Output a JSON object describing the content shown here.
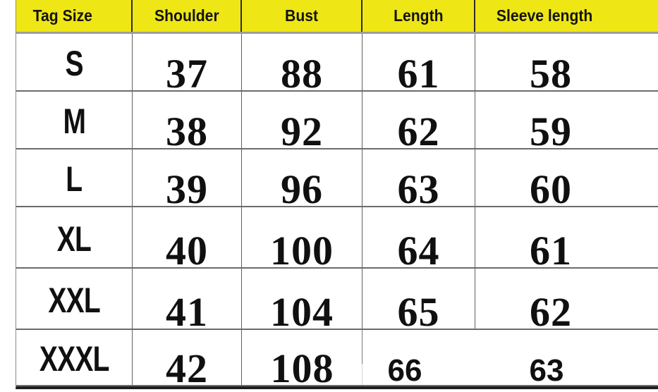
{
  "header": {
    "columns": [
      "Tag Size",
      "Shoulder",
      "Bust",
      "Length",
      "Sleeve length"
    ]
  },
  "table": {
    "rows": [
      {
        "size": "S",
        "shoulder": "37",
        "bust": "88",
        "length": "61",
        "sleeve": "58"
      },
      {
        "size": "M",
        "shoulder": "38",
        "bust": "92",
        "length": "62",
        "sleeve": "59"
      },
      {
        "size": "L",
        "shoulder": "39",
        "bust": "96",
        "length": "63",
        "sleeve": "60"
      },
      {
        "size": "XL",
        "shoulder": "40",
        "bust": "100",
        "length": "64",
        "sleeve": "61"
      },
      {
        "size": "XXL",
        "shoulder": "41",
        "bust": "104",
        "length": "65",
        "sleeve": "62"
      },
      {
        "size": "XXXL",
        "shoulder": "42",
        "bust": "108",
        "length": "66",
        "sleeve": "63"
      }
    ]
  },
  "chart_data": {
    "type": "table",
    "columns": [
      "Tag Size",
      "Shoulder",
      "Bust",
      "Length",
      "Sleeve length"
    ],
    "rows": [
      [
        "S",
        37,
        88,
        61,
        58
      ],
      [
        "M",
        38,
        92,
        62,
        59
      ],
      [
        "L",
        39,
        96,
        63,
        60
      ],
      [
        "XL",
        40,
        100,
        64,
        61
      ],
      [
        "XXL",
        41,
        104,
        65,
        62
      ],
      [
        "XXXL",
        42,
        108,
        66,
        63
      ]
    ]
  },
  "colors": {
    "header_bg": "#efe616",
    "header_text": "#141414",
    "body_text": "#101010",
    "header_divider": "#2e2e2e",
    "header_underline": "#9c9c9c",
    "row_line": "#6b6b6b",
    "column_line": "#5f5f5f",
    "bottom_border": "#1f1f1f"
  }
}
